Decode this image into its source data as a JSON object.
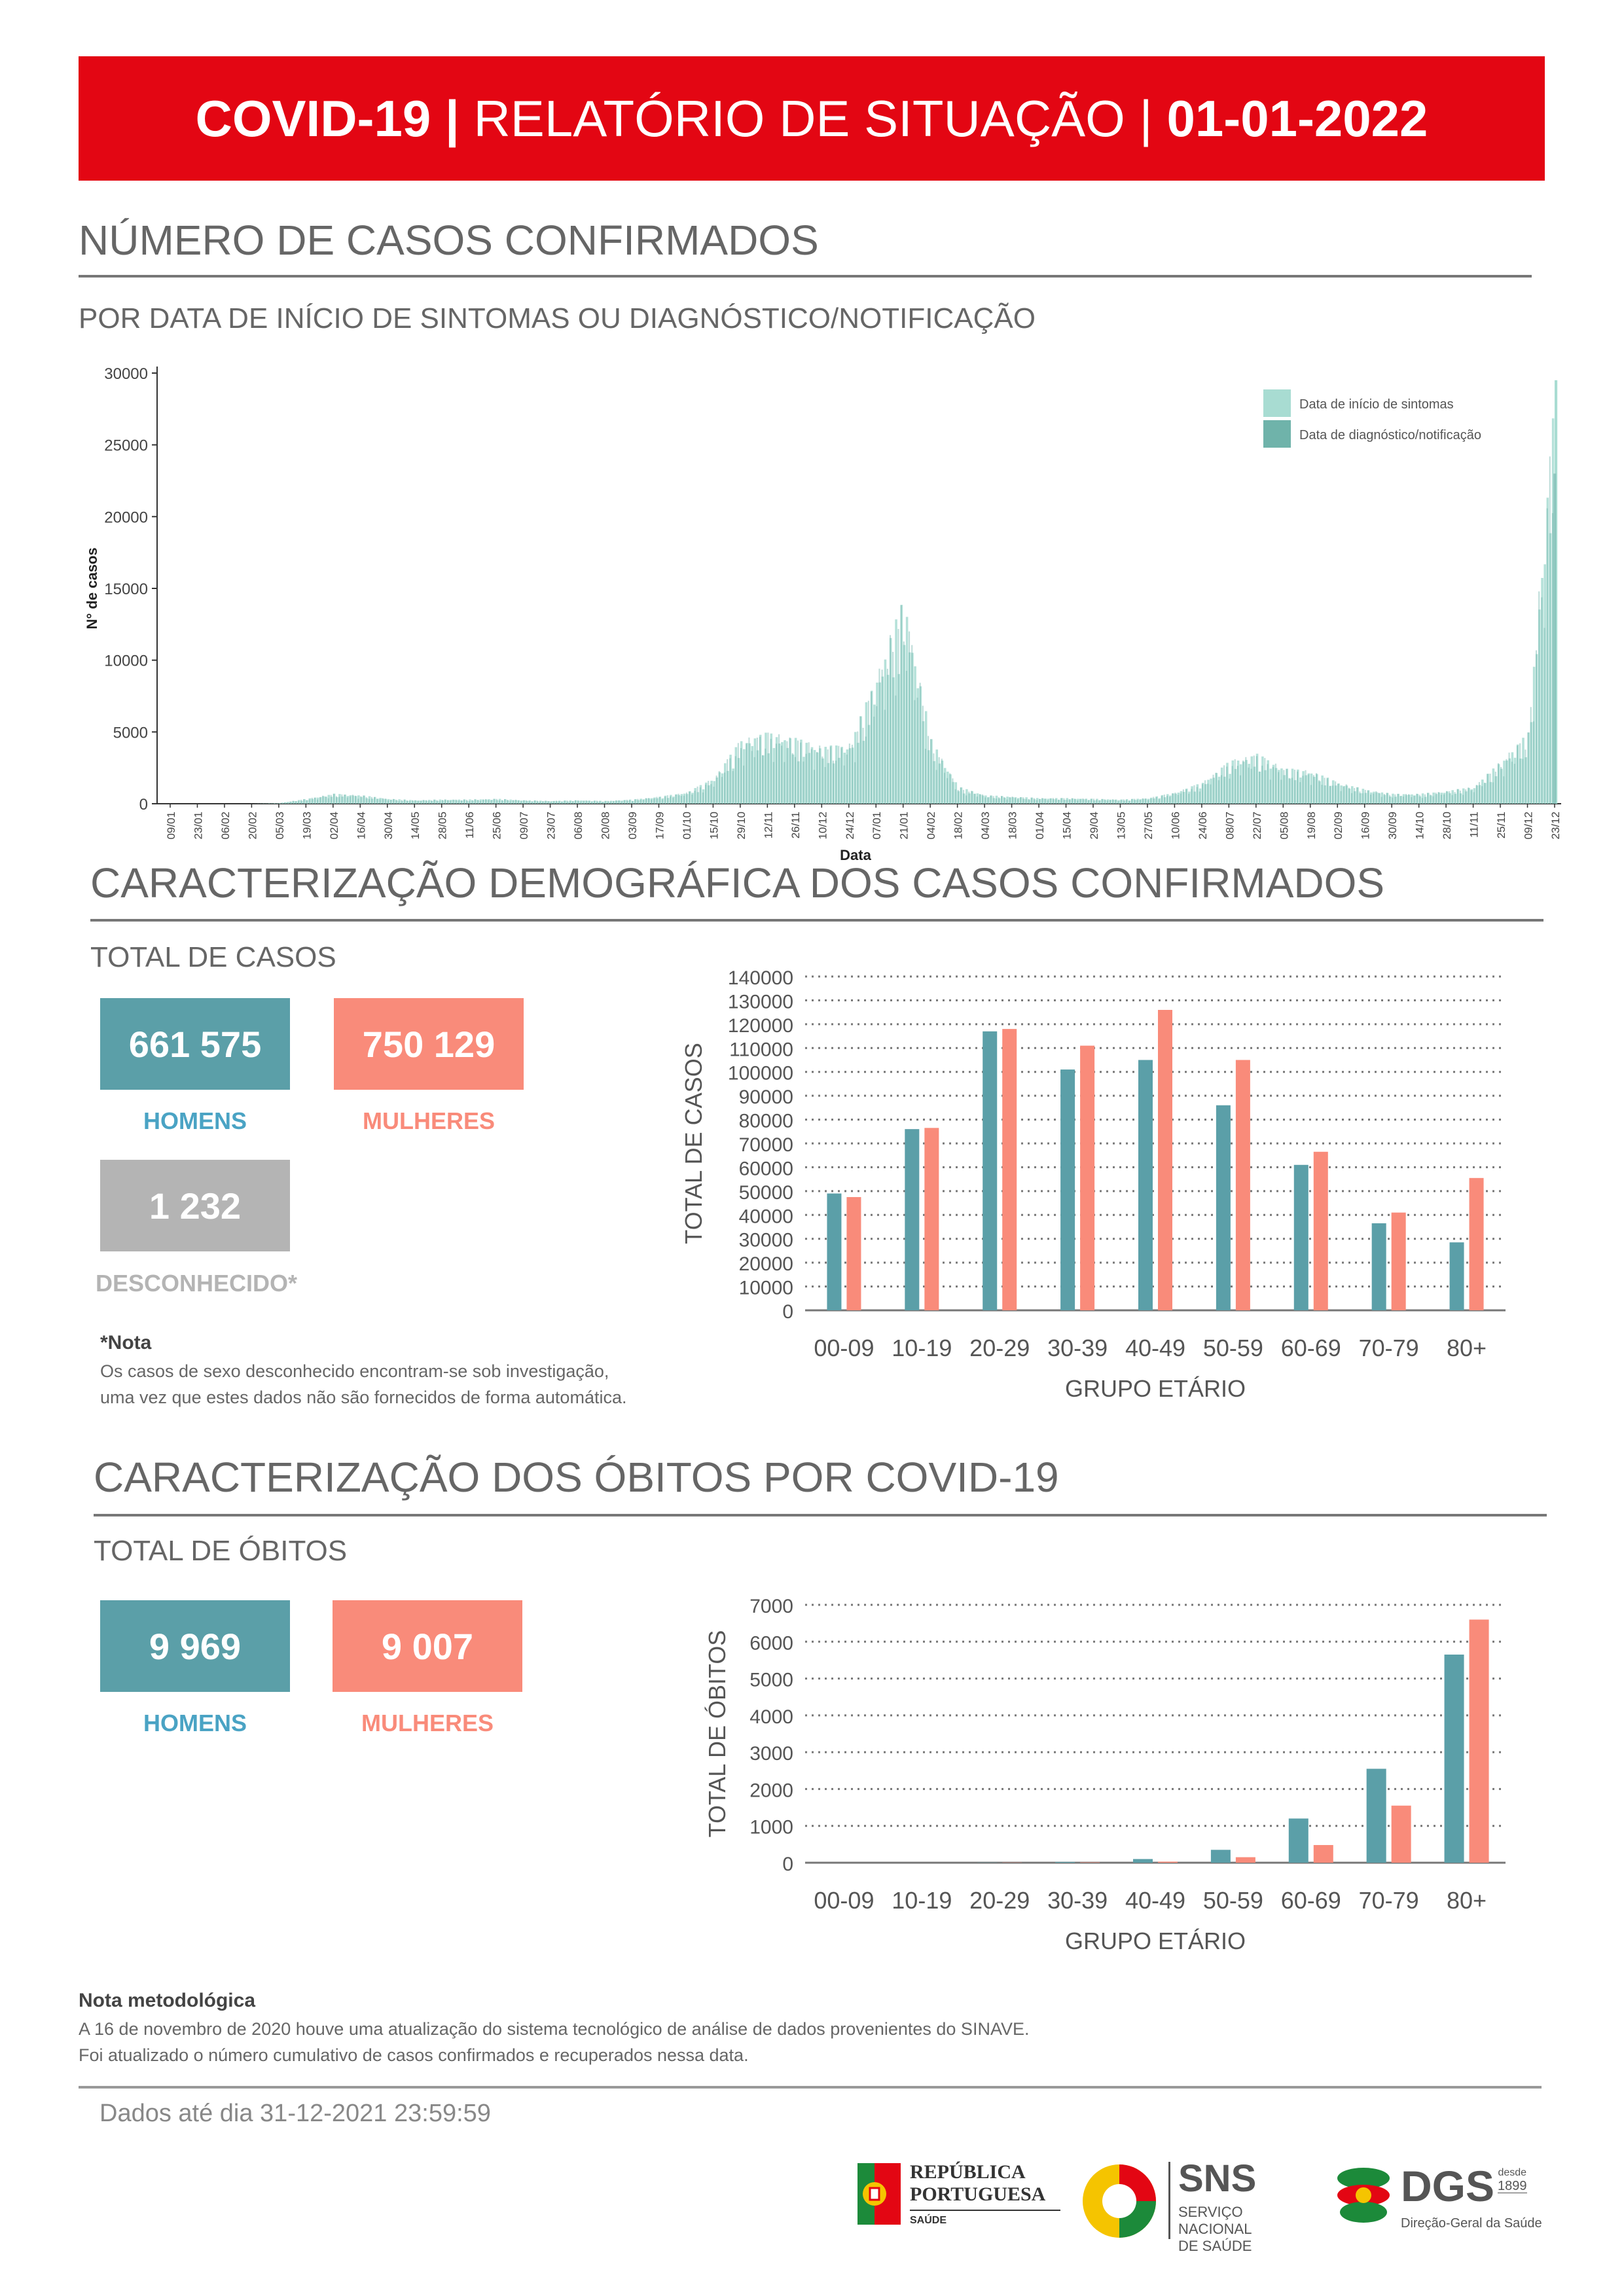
{
  "header": {
    "title_bold": "COVID-19 |",
    "title_mid": " RELATÓRIO DE SITUAÇÃO | ",
    "date": "01-01-2022"
  },
  "section1": {
    "title": "NÚMERO DE CASOS CONFIRMADOS",
    "subtitle": "POR DATA DE INÍCIO DE SINTOMAS OU DIAGNÓSTICO/NOTIFICAÇÃO"
  },
  "section2": {
    "title": "CARACTERIZAÇÃO DEMOGRÁFICA DOS CASOS CONFIRMADOS",
    "total_label": "TOTAL DE CASOS",
    "men_value": "661 575",
    "women_value": "750 129",
    "unknown_value": "1 232",
    "men_label": "HOMENS",
    "women_label": "MULHERES",
    "unknown_label": "DESCONHECIDO*",
    "note_title": "*Nota",
    "note_line1": "Os casos de sexo desconhecido encontram-se sob investigação,",
    "note_line2": "uma vez que estes dados não são fornecidos de forma automática."
  },
  "section3": {
    "title": "CARACTERIZAÇÃO DOS ÓBITOS POR COVID-19",
    "total_label": "TOTAL DE ÓBITOS",
    "men_value": "9 969",
    "women_value": "9 007",
    "men_label": "HOMENS",
    "women_label": "MULHERES"
  },
  "footer": {
    "note_title": "Nota metodológica",
    "note_line1": "A 16 de novembro de 2020 houve uma atualização do sistema tecnológico de análise de dados provenientes do SINAVE.",
    "note_line2": "Foi atualizado o número cumulativo de casos confirmados e recuperados nessa data.",
    "data_until": "Dados até dia 31-12-2021 23:59:59"
  },
  "logos": {
    "republica_line1": "REPÚBLICA",
    "republica_line2": "PORTUGUESA",
    "republica_line3": "SAÚDE",
    "sns_big": "SNS",
    "sns_line1": "SERVIÇO NACIONAL",
    "sns_line2": "DE SAÚDE",
    "dgs_big": "DGS",
    "dgs_desde": "desde",
    "dgs_year": "1899",
    "dgs_sub": "Direção-Geral da Saúde"
  },
  "colors": {
    "header_red": "#e30613",
    "men_teal": "#5b9fa8",
    "women_salmon": "#f98b7a",
    "unknown_grey": "#b4b4b4",
    "symptom_series": "#a8dcd2",
    "notification_series": "#6fb3aa"
  },
  "chart_data": [
    {
      "type": "bar",
      "xlabel": "Data",
      "ylabel": "N° de casos",
      "ylim": [
        0,
        30000
      ],
      "yticks": [
        0,
        5000,
        10000,
        15000,
        20000,
        25000,
        30000
      ],
      "legend_position": "top-right",
      "grid": false,
      "series": [
        {
          "name": "Data de início de sintomas"
        },
        {
          "name": "Data de diagnóstico/notificação"
        }
      ],
      "categories": [
        "09/01",
        "23/01",
        "06/02",
        "20/02",
        "05/03",
        "19/03",
        "02/04",
        "16/04",
        "30/04",
        "14/05",
        "28/05",
        "11/06",
        "25/06",
        "09/07",
        "23/07",
        "06/08",
        "20/08",
        "03/09",
        "17/09",
        "01/10",
        "15/10",
        "29/10",
        "12/11",
        "26/11",
        "10/12",
        "24/12",
        "07/01",
        "21/01",
        "04/02",
        "18/02",
        "04/03",
        "18/03",
        "01/04",
        "15/04",
        "29/04",
        "13/05",
        "27/05",
        "10/06",
        "24/06",
        "08/07",
        "22/07",
        "05/08",
        "19/08",
        "02/09",
        "16/09",
        "30/09",
        "14/10",
        "28/10",
        "11/11",
        "25/11",
        "09/12",
        "23/12"
      ],
      "values": [
        0,
        0,
        0,
        0,
        50,
        350,
        700,
        600,
        350,
        250,
        300,
        300,
        350,
        250,
        200,
        250,
        200,
        300,
        500,
        800,
        1800,
        4500,
        5000,
        4600,
        4000,
        4200,
        9000,
        14500,
        4500,
        1200,
        600,
        500,
        400,
        400,
        350,
        300,
        400,
        800,
        1500,
        3000,
        3500,
        2500,
        2300,
        1500,
        1000,
        700,
        700,
        900,
        1200,
        3000,
        5000,
        29500
      ]
    },
    {
      "type": "bar",
      "xlabel": "GRUPO ETÁRIO",
      "ylabel": "TOTAL DE CASOS",
      "ylim": [
        0,
        140000
      ],
      "yticks": [
        0,
        10000,
        20000,
        30000,
        40000,
        50000,
        60000,
        70000,
        80000,
        90000,
        100000,
        110000,
        120000,
        130000,
        140000
      ],
      "grid": true,
      "categories": [
        "00-09",
        "10-19",
        "20-29",
        "30-39",
        "40-49",
        "50-59",
        "60-69",
        "70-79",
        "80+"
      ],
      "series": [
        {
          "values": [
            49000,
            76000,
            117000,
            101000,
            105000,
            86000,
            61000,
            36500,
            28500
          ]
        },
        {
          "values": [
            47500,
            76500,
            118000,
            111000,
            126000,
            105000,
            66500,
            41000,
            55500
          ]
        }
      ]
    },
    {
      "type": "bar",
      "xlabel": "GRUPO ETÁRIO",
      "ylabel": "TOTAL DE ÓBITOS",
      "ylim": [
        0,
        7000
      ],
      "yticks": [
        0,
        1000,
        2000,
        3000,
        4000,
        5000,
        6000,
        7000
      ],
      "grid": true,
      "categories": [
        "00-09",
        "10-19",
        "20-29",
        "30-39",
        "40-49",
        "50-59",
        "60-69",
        "70-79",
        "80+"
      ],
      "series": [
        {
          "values": [
            0,
            0,
            5,
            20,
            100,
            350,
            1200,
            2550,
            5650
          ]
        },
        {
          "values": [
            0,
            0,
            5,
            10,
            30,
            150,
            480,
            1550,
            6600
          ]
        }
      ]
    }
  ]
}
